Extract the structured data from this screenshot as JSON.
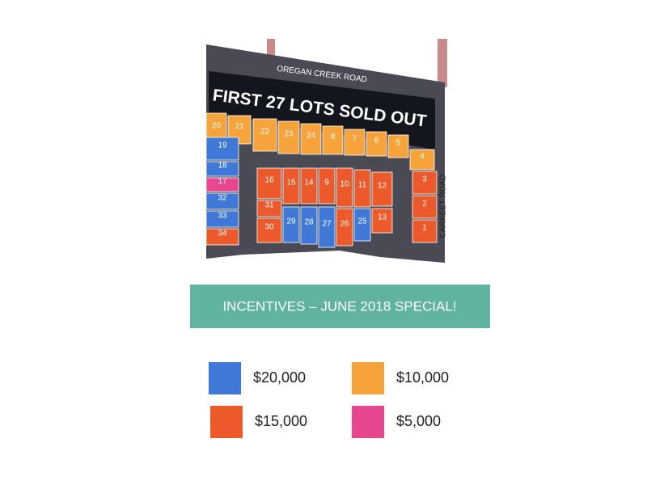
{
  "roads": {
    "top": "OREGAN CREEK ROAD",
    "side": "CARKEET ROAD"
  },
  "sold_out": "FIRST 27 LOTS SOLD OUT",
  "lots": [
    {
      "label": "20",
      "color": "#f5a33a"
    },
    {
      "label": "21",
      "color": "#f5a33a"
    },
    {
      "label": "22",
      "color": "#f5a33a"
    },
    {
      "label": "23",
      "color": "#f5a33a"
    },
    {
      "label": "24",
      "color": "#f5a33a"
    },
    {
      "label": "8",
      "color": "#f5a33a"
    },
    {
      "label": "7",
      "color": "#f5a33a"
    },
    {
      "label": "6",
      "color": "#f5a33a"
    },
    {
      "label": "5",
      "color": "#f5a33a"
    },
    {
      "label": "4",
      "color": "#f5a33a"
    },
    {
      "label": "3",
      "color": "#ec5a2b"
    },
    {
      "label": "2",
      "color": "#ec5a2b"
    },
    {
      "label": "1",
      "color": "#ec5a2b"
    },
    {
      "label": "19",
      "color": "#3f78d6"
    },
    {
      "label": "18",
      "color": "#3f78d6"
    },
    {
      "label": "17",
      "color": "#e8468f"
    },
    {
      "label": "32",
      "color": "#3f78d6"
    },
    {
      "label": "33",
      "color": "#3f78d6"
    },
    {
      "label": "34",
      "color": "#ec5a2b"
    },
    {
      "label": "16",
      "color": "#ec5a2b"
    },
    {
      "label": "15",
      "color": "#ec5a2b"
    },
    {
      "label": "14",
      "color": "#ec5a2b"
    },
    {
      "label": "9",
      "color": "#ec5a2b"
    },
    {
      "label": "10",
      "color": "#ec5a2b"
    },
    {
      "label": "11",
      "color": "#ec5a2b"
    },
    {
      "label": "12",
      "color": "#ec5a2b"
    },
    {
      "label": "31",
      "color": "#ec5a2b"
    },
    {
      "label": "13",
      "color": "#ec5a2b"
    },
    {
      "label": "30",
      "color": "#ec5a2b"
    },
    {
      "label": "29",
      "color": "#3f78d6"
    },
    {
      "label": "28",
      "color": "#3f78d6"
    },
    {
      "label": "27",
      "color": "#3f78d6"
    },
    {
      "label": "26",
      "color": "#ec5a2b"
    },
    {
      "label": "25",
      "color": "#3f78d6"
    }
  ],
  "banner": "INCENTIVES – JUNE 2018 SPECIAL!",
  "legend": [
    {
      "label": "$20,000",
      "color": "#3f78d6"
    },
    {
      "label": "$10,000",
      "color": "#f5a33a"
    },
    {
      "label": "$15,000",
      "color": "#ec5a2b"
    },
    {
      "label": "$5,000",
      "color": "#e8468f"
    }
  ]
}
